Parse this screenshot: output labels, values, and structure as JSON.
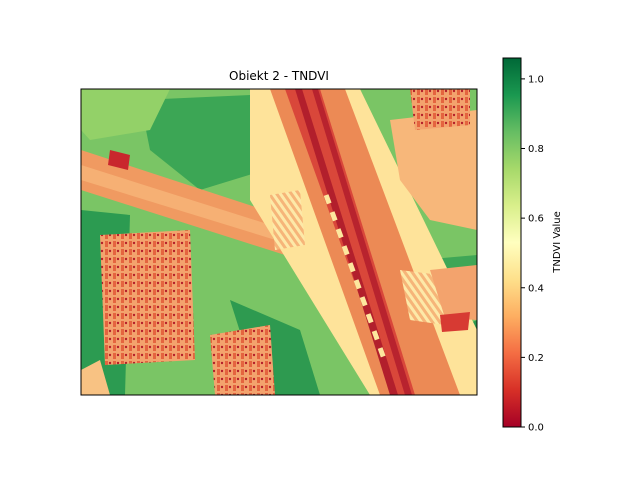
{
  "chart_data": {
    "type": "heatmap",
    "title": "Obiekt 2 - TNDVI",
    "colormap": "RdYlGn",
    "colorbar": {
      "label": "TNDVI Value",
      "range": [
        0.0,
        1.06
      ],
      "ticks": [
        0.0,
        0.2,
        0.4,
        0.6,
        0.8,
        1.0
      ],
      "tick_labels": [
        "0.0",
        "0.2",
        "0.4",
        "0.6",
        "0.8",
        "1.0"
      ]
    },
    "axes_visible": false
  }
}
